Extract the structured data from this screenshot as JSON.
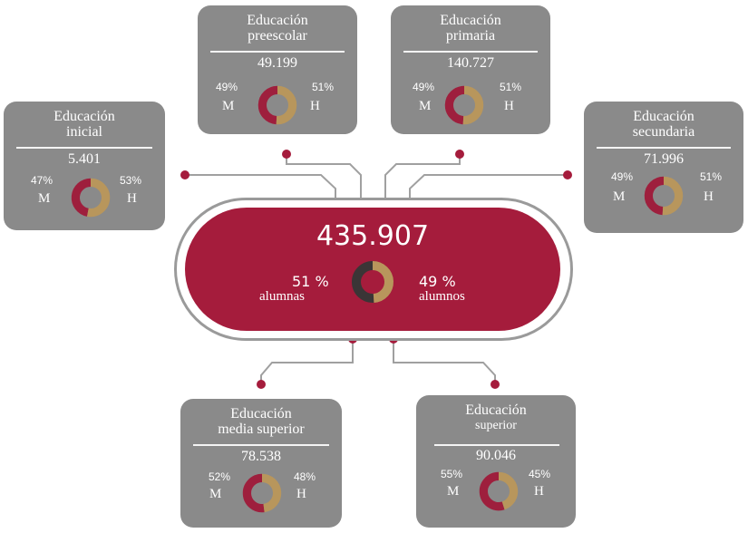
{
  "colors": {
    "card_bg": "#8a8a8a",
    "accent": "#a51c3c",
    "women": "#9e1f3d",
    "men": "#b8965c",
    "central_dark": "#3a3536",
    "connector": "#a0a0a0"
  },
  "central": {
    "total": "435.907",
    "women_pct": "51 %",
    "women_label": "alumnas",
    "men_pct": "49 %",
    "men_label": "alumnos",
    "women_share": 51,
    "men_share": 49
  },
  "cards": {
    "inicial": {
      "title_line1": "Educación",
      "title_line2": "inicial",
      "total": "5.401",
      "women_pct": "47%",
      "men_pct": "53%",
      "women_label": "M",
      "men_label": "H",
      "women_share": 47
    },
    "preescolar": {
      "title_line1": "Educación",
      "title_line2": "preescolar",
      "total": "49.199",
      "women_pct": "49%",
      "men_pct": "51%",
      "women_label": "M",
      "men_label": "H",
      "women_share": 49
    },
    "primaria": {
      "title_line1": "Educación",
      "title_line2": "primaria",
      "total": "140.727",
      "women_pct": "49%",
      "men_pct": "51%",
      "women_label": "M",
      "men_label": "H",
      "women_share": 49
    },
    "secundaria": {
      "title_line1": "Educación",
      "title_line2": "secundaria",
      "total": "71.996",
      "women_pct": "49%",
      "men_pct": "51%",
      "women_label": "M",
      "men_label": "H",
      "women_share": 49
    },
    "media_superior": {
      "title_line1": "Educación",
      "title_line2": "media superior",
      "total": "78.538",
      "women_pct": "52%",
      "men_pct": "48%",
      "women_label": "M",
      "men_label": "H",
      "women_share": 52
    },
    "superior": {
      "title_line1": "Educación",
      "title_line2": "superior",
      "total": "90.046",
      "women_pct": "55%",
      "men_pct": "45%",
      "women_label": "M",
      "men_label": "H",
      "women_share": 55
    }
  }
}
